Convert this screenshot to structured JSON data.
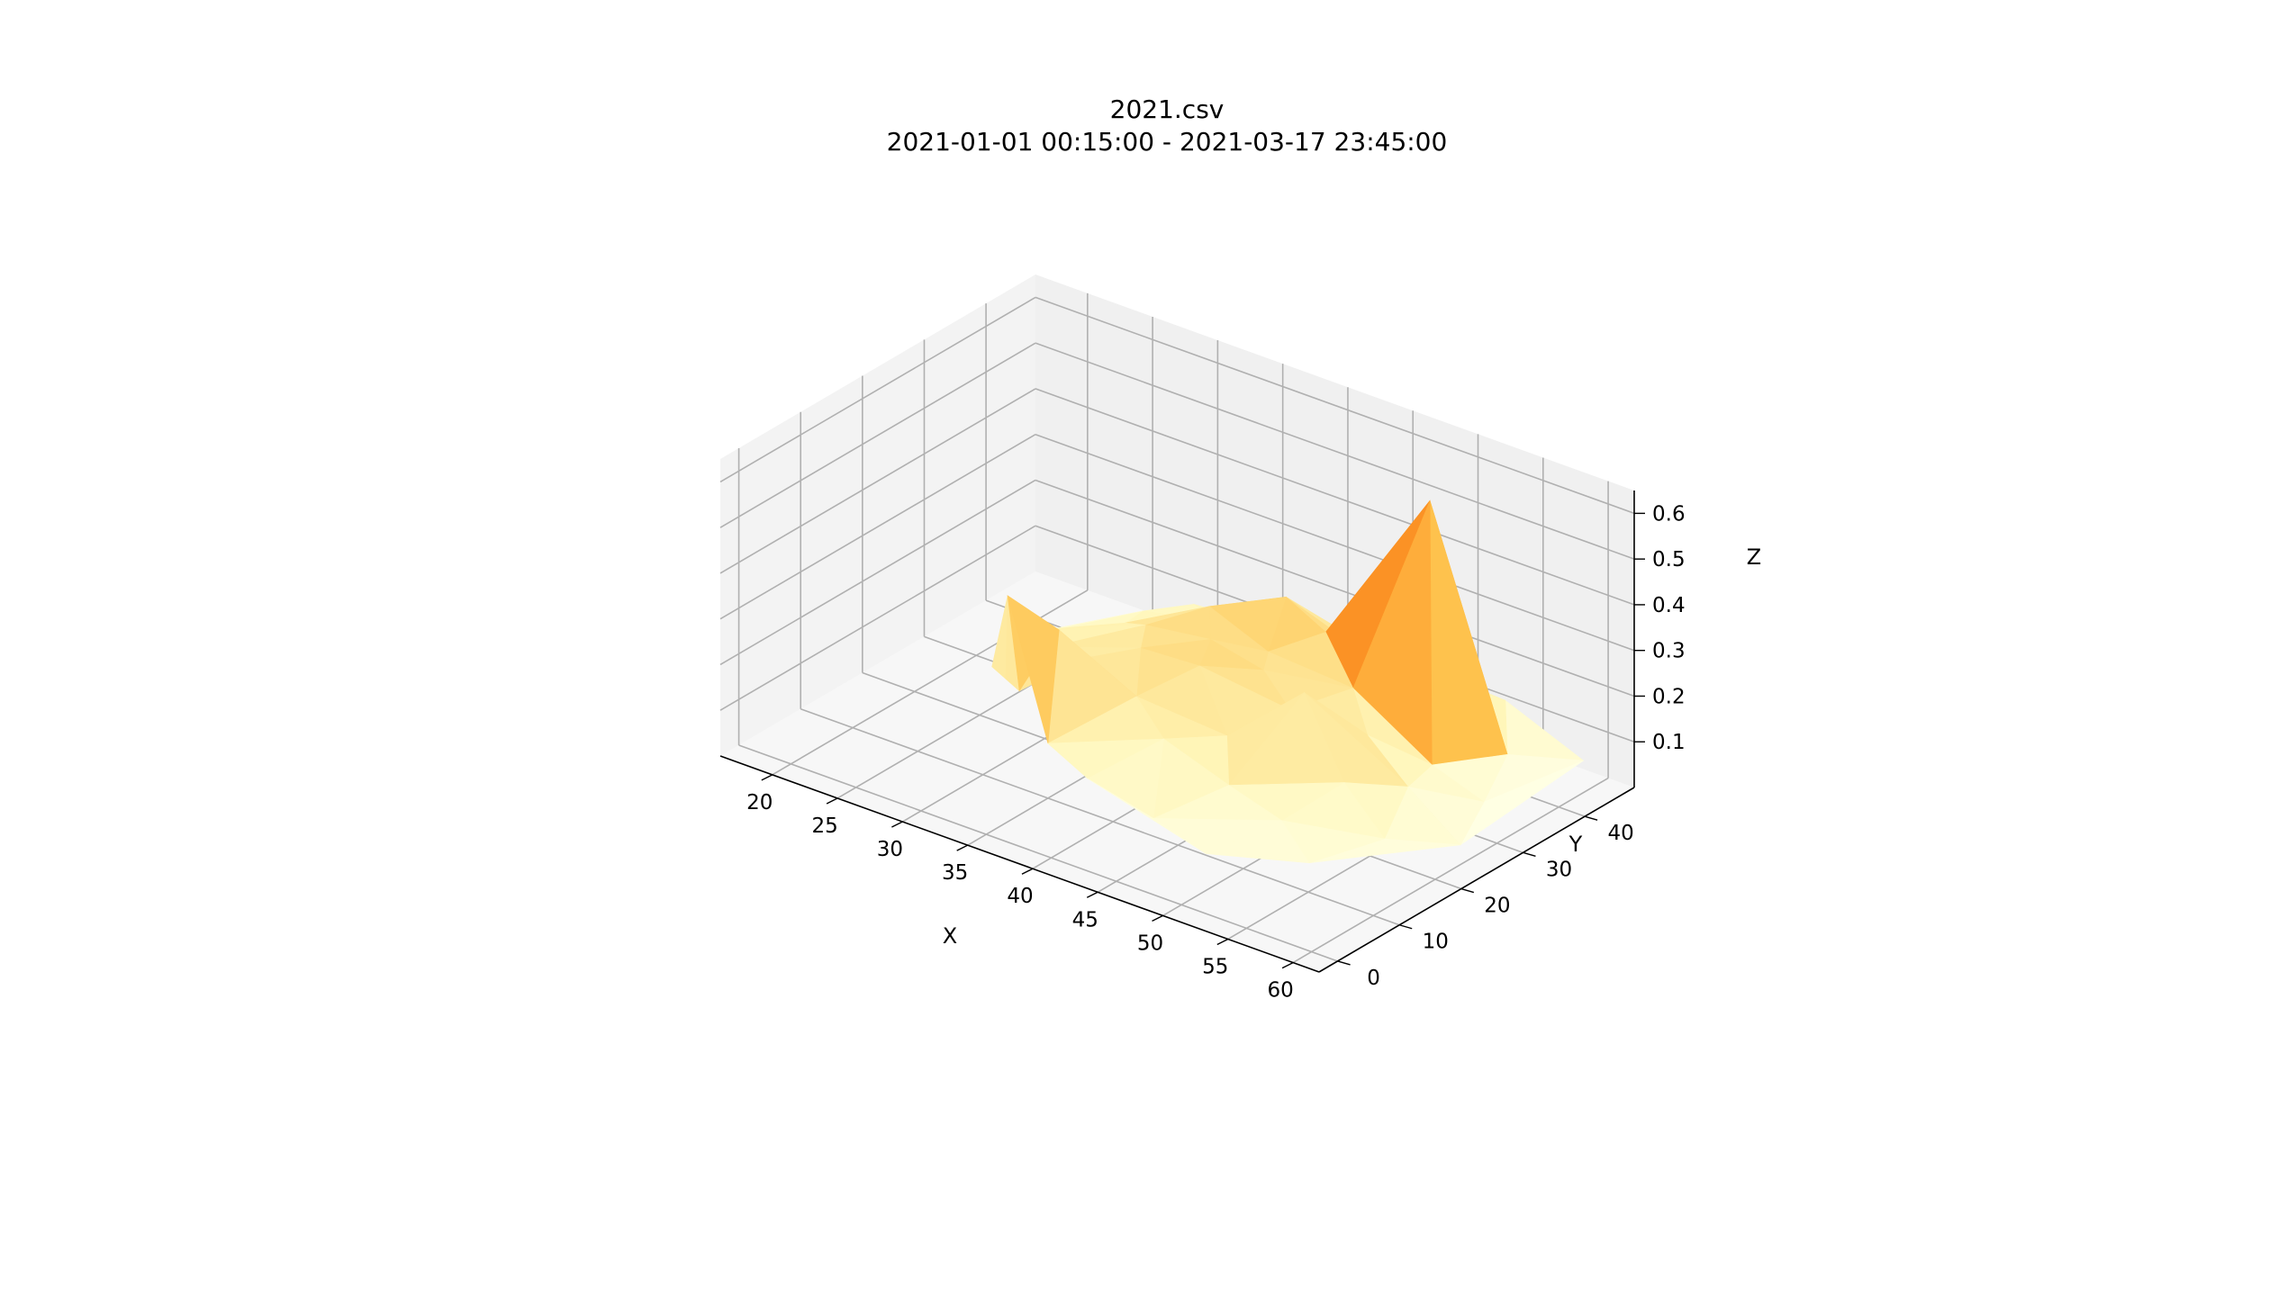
{
  "chart_data": {
    "type": "surface3d",
    "title": "2021.csv",
    "subtitle": "2021-01-01 00:15:00 - 2021-03-17 23:45:00",
    "xlabel": "X",
    "ylabel": "Y",
    "zlabel": "Z",
    "x_ticks": [
      "20",
      "25",
      "30",
      "35",
      "40",
      "45",
      "50",
      "55",
      "60"
    ],
    "y_ticks": [
      "0",
      "10",
      "20",
      "30",
      "40"
    ],
    "z_ticks": [
      "0.1",
      "0.2",
      "0.3",
      "0.4",
      "0.5",
      "0.6"
    ],
    "xlim": [
      16,
      62
    ],
    "ylim": [
      -3,
      48
    ],
    "zlim": [
      0.0,
      0.65
    ],
    "colormap": "YlOrBr",
    "grid": true,
    "series": [
      {
        "points": [
          {
            "x": 23,
            "y": 28,
            "z": 0.08
          },
          {
            "x": 25,
            "y": 22,
            "z": 0.09
          },
          {
            "x": 26,
            "y": 30,
            "z": 0.12
          },
          {
            "x": 27,
            "y": 20,
            "z": 0.1
          },
          {
            "x": 28,
            "y": 40,
            "z": 0.1
          },
          {
            "x": 28,
            "y": 25,
            "z": 0.14
          },
          {
            "x": 29,
            "y": 18,
            "z": 0.11
          },
          {
            "x": 30,
            "y": 14,
            "z": 0.36
          },
          {
            "x": 30,
            "y": 33,
            "z": 0.15
          },
          {
            "x": 31,
            "y": 42,
            "z": 0.13
          },
          {
            "x": 32,
            "y": 22,
            "z": 0.18
          },
          {
            "x": 33,
            "y": 16,
            "z": 0.3
          },
          {
            "x": 33,
            "y": 30,
            "z": 0.2
          },
          {
            "x": 34,
            "y": 38,
            "z": 0.16
          },
          {
            "x": 35,
            "y": 10,
            "z": 0.12
          },
          {
            "x": 35,
            "y": 25,
            "z": 0.21
          },
          {
            "x": 36,
            "y": 34,
            "z": 0.24
          },
          {
            "x": 37,
            "y": 44,
            "z": 0.12
          },
          {
            "x": 38,
            "y": 18,
            "z": 0.19
          },
          {
            "x": 38,
            "y": 30,
            "z": 0.22
          },
          {
            "x": 39,
            "y": 8,
            "z": 0.1
          },
          {
            "x": 40,
            "y": 24,
            "z": 0.23
          },
          {
            "x": 40,
            "y": 38,
            "z": 0.27
          },
          {
            "x": 41,
            "y": 33,
            "z": 0.2
          },
          {
            "x": 42,
            "y": 14,
            "z": 0.17
          },
          {
            "x": 42,
            "y": 44,
            "z": 0.16
          },
          {
            "x": 43,
            "y": 28,
            "z": 0.22
          },
          {
            "x": 44,
            "y": 20,
            "z": 0.15
          },
          {
            "x": 44,
            "y": 36,
            "z": 0.25
          },
          {
            "x": 45,
            "y": 6,
            "z": 0.09
          },
          {
            "x": 46,
            "y": 26,
            "z": 0.18
          },
          {
            "x": 46,
            "y": 42,
            "z": 0.14
          },
          {
            "x": 47,
            "y": 14,
            "z": 0.12
          },
          {
            "x": 48,
            "y": 32,
            "z": 0.2
          },
          {
            "x": 49,
            "y": 22,
            "z": 0.28
          },
          {
            "x": 50,
            "y": 40,
            "z": 0.19
          },
          {
            "x": 50,
            "y": 4,
            "z": 0.08
          },
          {
            "x": 51,
            "y": 28,
            "z": 0.16
          },
          {
            "x": 52,
            "y": 36,
            "z": 0.62
          },
          {
            "x": 52,
            "y": 12,
            "z": 0.11
          },
          {
            "x": 53,
            "y": 20,
            "z": 0.14
          },
          {
            "x": 54,
            "y": 44,
            "z": 0.14
          },
          {
            "x": 55,
            "y": 30,
            "z": 0.12
          },
          {
            "x": 56,
            "y": 8,
            "z": 0.09
          },
          {
            "x": 56,
            "y": 24,
            "z": 0.13
          },
          {
            "x": 57,
            "y": 38,
            "z": 0.1
          },
          {
            "x": 58,
            "y": 16,
            "z": 0.1
          },
          {
            "x": 59,
            "y": 30,
            "z": 0.08
          },
          {
            "x": 60,
            "y": 44,
            "z": 0.07
          },
          {
            "x": 61,
            "y": 22,
            "z": 0.07
          }
        ]
      }
    ]
  }
}
